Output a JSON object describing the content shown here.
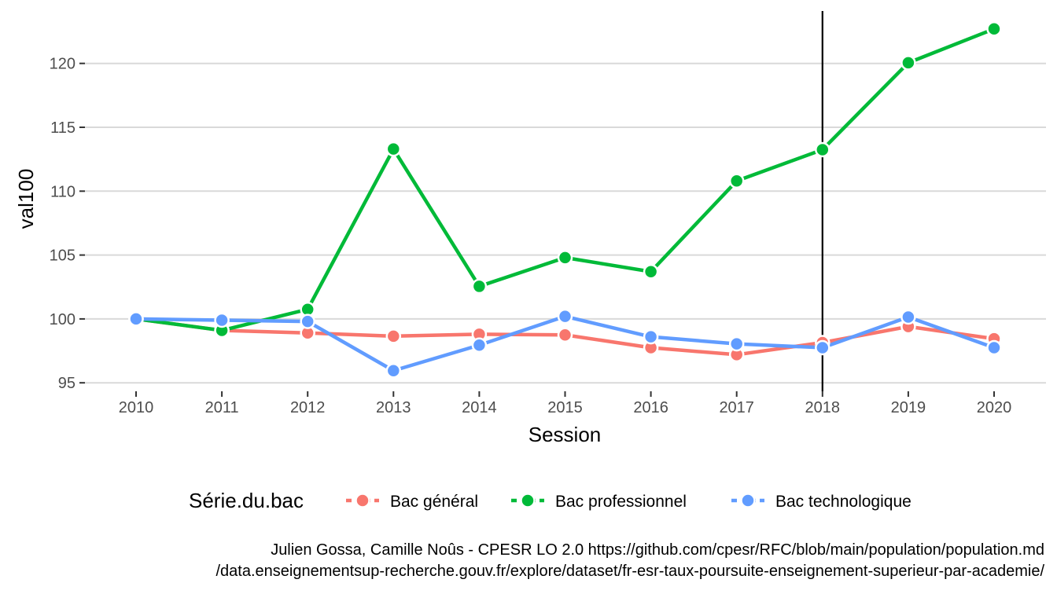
{
  "chart_data": {
    "type": "line",
    "title": "",
    "xlabel": "Session",
    "ylabel": "val100",
    "x": [
      2010,
      2011,
      2012,
      2013,
      2014,
      2015,
      2016,
      2017,
      2018,
      2019,
      2020
    ],
    "x_tick_labels": [
      "2010",
      "2011",
      "2012",
      "2013",
      "2014",
      "2015",
      "2016",
      "2017",
      "2018",
      "2019",
      "2020"
    ],
    "y_ticks": [
      95,
      100,
      105,
      110,
      115,
      120
    ],
    "y_tick_labels": [
      "95",
      "100",
      "105",
      "110",
      "115",
      "120"
    ],
    "xlim": [
      2009.6,
      2020.4
    ],
    "ylim": [
      94.5,
      124.5
    ],
    "grid": true,
    "vline_x": 2018,
    "series": [
      {
        "name": "Bac général",
        "color": "#F8766D",
        "values": [
          100,
          99.1,
          98.9,
          98.65,
          98.8,
          98.75,
          97.75,
          97.2,
          98.15,
          99.4,
          98.45
        ]
      },
      {
        "name": "Bac professionnel",
        "color": "#00BA38",
        "values": [
          100,
          99.1,
          100.75,
          113.3,
          102.55,
          104.8,
          103.7,
          110.8,
          113.25,
          120.05,
          122.7
        ]
      },
      {
        "name": "Bac technologique",
        "color": "#619CFF",
        "values": [
          100,
          99.9,
          99.8,
          95.95,
          97.95,
          100.2,
          98.6,
          98.05,
          97.75,
          100.15,
          97.75
        ]
      }
    ],
    "legend": {
      "title": "Série.du.bac",
      "position": "bottom"
    },
    "caption": [
      "Julien Gossa, Camille Noûs - CPESR LO 2.0 https://github.com/cpesr/RFC/blob/main/population/population.md",
      "/data.enseignementsup-recherche.gouv.fr/explore/dataset/fr-esr-taux-poursuite-enseignement-superieur-par-academie/"
    ]
  }
}
